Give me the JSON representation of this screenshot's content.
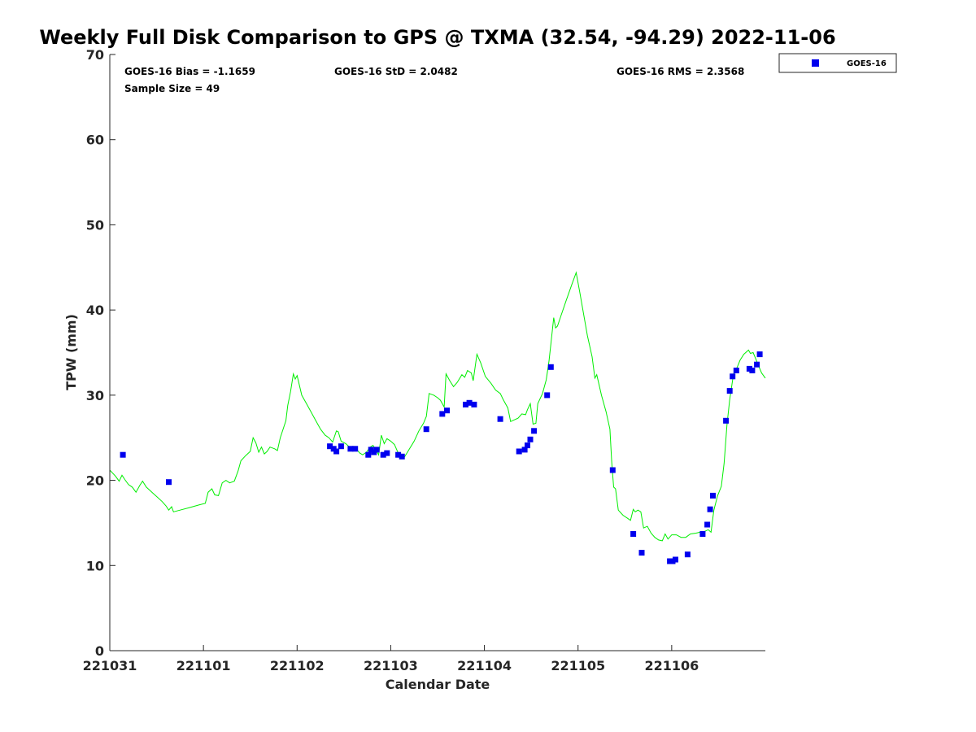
{
  "chart_data": {
    "type": "scatter",
    "title": "Weekly Full Disk Comparison to GPS @ TXMA (32.54, -94.29) 2022-11-06",
    "xlabel": "Calendar Date",
    "ylabel": "TPW (mm)",
    "xlim": [
      0,
      7
    ],
    "ylim": [
      0,
      70
    ],
    "x_ticks": [
      {
        "value": 0,
        "label": "221031"
      },
      {
        "value": 1,
        "label": "221101"
      },
      {
        "value": 2,
        "label": "221102"
      },
      {
        "value": 3,
        "label": "221103"
      },
      {
        "value": 4,
        "label": "221104"
      },
      {
        "value": 5,
        "label": "221105"
      },
      {
        "value": 6,
        "label": "221106"
      }
    ],
    "y_ticks": [
      0,
      10,
      20,
      30,
      40,
      50,
      60,
      70
    ],
    "grid": false,
    "legend": {
      "position": "top-right",
      "entries": [
        {
          "name": "GOES-16",
          "color": "#0000ee",
          "marker": "square"
        }
      ]
    },
    "stats": {
      "bias": "GOES-16 Bias = -1.1659",
      "std": "GOES-16 StD = 2.0482",
      "rms": "GOES-16 RMS = 2.3568",
      "sample": "Sample Size = 49"
    },
    "series": [
      {
        "name": "GOES-16",
        "kind": "scatter",
        "color": "#0000ee",
        "points": [
          [
            0.14,
            23.0
          ],
          [
            0.63,
            19.8
          ],
          [
            2.35,
            24.0
          ],
          [
            2.39,
            23.7
          ],
          [
            2.42,
            23.4
          ],
          [
            2.47,
            24.0
          ],
          [
            2.57,
            23.7
          ],
          [
            2.62,
            23.7
          ],
          [
            2.76,
            23.0
          ],
          [
            2.79,
            23.6
          ],
          [
            2.82,
            23.3
          ],
          [
            2.85,
            23.6
          ],
          [
            2.92,
            23.0
          ],
          [
            2.96,
            23.2
          ],
          [
            3.08,
            23.0
          ],
          [
            3.12,
            22.8
          ],
          [
            3.38,
            26.0
          ],
          [
            3.55,
            27.8
          ],
          [
            3.6,
            28.2
          ],
          [
            3.8,
            28.9
          ],
          [
            3.84,
            29.1
          ],
          [
            3.89,
            28.9
          ],
          [
            4.17,
            27.2
          ],
          [
            4.37,
            23.4
          ],
          [
            4.43,
            23.6
          ],
          [
            4.46,
            24.1
          ],
          [
            4.49,
            24.8
          ],
          [
            4.53,
            25.8
          ],
          [
            4.67,
            30.0
          ],
          [
            4.71,
            33.3
          ],
          [
            5.37,
            21.2
          ],
          [
            5.59,
            13.7
          ],
          [
            5.68,
            11.5
          ],
          [
            5.98,
            10.5
          ],
          [
            6.01,
            10.5
          ],
          [
            6.04,
            10.7
          ],
          [
            6.17,
            11.3
          ],
          [
            6.33,
            13.7
          ],
          [
            6.38,
            14.8
          ],
          [
            6.41,
            16.6
          ],
          [
            6.44,
            18.2
          ],
          [
            6.58,
            27.0
          ],
          [
            6.62,
            30.5
          ],
          [
            6.65,
            32.2
          ],
          [
            6.69,
            32.9
          ],
          [
            6.83,
            33.1
          ],
          [
            6.86,
            32.9
          ],
          [
            6.91,
            33.6
          ],
          [
            6.94,
            34.8
          ]
        ]
      },
      {
        "name": "",
        "kind": "line",
        "color": "#00ee00",
        "points": [
          [
            0.0,
            21.2
          ],
          [
            0.06,
            20.5
          ],
          [
            0.1,
            19.9
          ],
          [
            0.13,
            20.6
          ],
          [
            0.16,
            20.1
          ],
          [
            0.2,
            19.5
          ],
          [
            0.24,
            19.2
          ],
          [
            0.28,
            18.6
          ],
          [
            0.32,
            19.4
          ],
          [
            0.35,
            19.9
          ],
          [
            0.39,
            19.2
          ],
          [
            0.45,
            18.6
          ],
          [
            0.5,
            18.1
          ],
          [
            0.56,
            17.5
          ],
          [
            0.6,
            17.0
          ],
          [
            0.63,
            16.5
          ],
          [
            0.66,
            16.9
          ],
          [
            0.68,
            16.3
          ],
          [
            0.75,
            16.5
          ],
          [
            0.85,
            16.8
          ],
          [
            0.95,
            17.1
          ],
          [
            1.02,
            17.3
          ],
          [
            1.05,
            18.6
          ],
          [
            1.09,
            19.0
          ],
          [
            1.12,
            18.3
          ],
          [
            1.16,
            18.2
          ],
          [
            1.2,
            19.7
          ],
          [
            1.24,
            20.0
          ],
          [
            1.28,
            19.7
          ],
          [
            1.33,
            19.9
          ],
          [
            1.37,
            21.1
          ],
          [
            1.4,
            22.3
          ],
          [
            1.45,
            22.9
          ],
          [
            1.5,
            23.4
          ],
          [
            1.53,
            25.0
          ],
          [
            1.56,
            24.4
          ],
          [
            1.59,
            23.3
          ],
          [
            1.62,
            23.9
          ],
          [
            1.65,
            23.1
          ],
          [
            1.68,
            23.4
          ],
          [
            1.71,
            23.9
          ],
          [
            1.76,
            23.7
          ],
          [
            1.79,
            23.5
          ],
          [
            1.82,
            25.0
          ],
          [
            1.88,
            27.0
          ],
          [
            1.9,
            28.8
          ],
          [
            1.93,
            30.4
          ],
          [
            1.96,
            32.5
          ],
          [
            1.98,
            31.9
          ],
          [
            2.0,
            32.3
          ],
          [
            2.05,
            30.0
          ],
          [
            2.1,
            29.0
          ],
          [
            2.15,
            28.0
          ],
          [
            2.2,
            27.0
          ],
          [
            2.25,
            26.0
          ],
          [
            2.3,
            25.3
          ],
          [
            2.34,
            25.0
          ],
          [
            2.38,
            24.5
          ],
          [
            2.42,
            25.8
          ],
          [
            2.44,
            25.7
          ],
          [
            2.47,
            24.6
          ],
          [
            2.52,
            24.3
          ],
          [
            2.56,
            23.9
          ],
          [
            2.6,
            23.6
          ],
          [
            2.63,
            23.7
          ],
          [
            2.67,
            23.2
          ],
          [
            2.7,
            23.0
          ],
          [
            2.74,
            23.3
          ],
          [
            2.78,
            23.9
          ],
          [
            2.81,
            24.1
          ],
          [
            2.84,
            23.6
          ],
          [
            2.87,
            23.0
          ],
          [
            2.9,
            25.3
          ],
          [
            2.93,
            24.3
          ],
          [
            2.96,
            24.9
          ],
          [
            3.0,
            24.6
          ],
          [
            3.04,
            24.2
          ],
          [
            3.08,
            23.2
          ],
          [
            3.12,
            22.8
          ],
          [
            3.15,
            22.8
          ],
          [
            3.2,
            23.7
          ],
          [
            3.25,
            24.6
          ],
          [
            3.3,
            25.8
          ],
          [
            3.35,
            26.7
          ],
          [
            3.38,
            27.5
          ],
          [
            3.41,
            30.2
          ],
          [
            3.46,
            30.0
          ],
          [
            3.5,
            29.7
          ],
          [
            3.53,
            29.4
          ],
          [
            3.57,
            28.6
          ],
          [
            3.59,
            32.5
          ],
          [
            3.63,
            31.7
          ],
          [
            3.67,
            31.0
          ],
          [
            3.71,
            31.5
          ],
          [
            3.76,
            32.4
          ],
          [
            3.79,
            32.1
          ],
          [
            3.82,
            32.9
          ],
          [
            3.86,
            32.6
          ],
          [
            3.88,
            31.7
          ],
          [
            3.92,
            34.8
          ],
          [
            3.96,
            33.8
          ],
          [
            4.01,
            32.2
          ],
          [
            4.07,
            31.4
          ],
          [
            4.12,
            30.6
          ],
          [
            4.17,
            30.2
          ],
          [
            4.2,
            29.5
          ],
          [
            4.25,
            28.5
          ],
          [
            4.28,
            26.9
          ],
          [
            4.32,
            27.1
          ],
          [
            4.36,
            27.3
          ],
          [
            4.4,
            27.8
          ],
          [
            4.44,
            27.7
          ],
          [
            4.46,
            28.3
          ],
          [
            4.49,
            29.0
          ],
          [
            4.52,
            26.6
          ],
          [
            4.55,
            26.7
          ],
          [
            4.57,
            29.0
          ],
          [
            4.62,
            30.2
          ],
          [
            4.66,
            31.8
          ],
          [
            4.69,
            34.0
          ],
          [
            4.71,
            36.0
          ],
          [
            4.74,
            39.1
          ],
          [
            4.76,
            37.9
          ],
          [
            4.78,
            38.1
          ],
          [
            4.82,
            39.4
          ],
          [
            4.87,
            41.0
          ],
          [
            4.93,
            42.9
          ],
          [
            4.98,
            44.4
          ],
          [
            5.02,
            42.0
          ],
          [
            5.06,
            39.5
          ],
          [
            5.1,
            37.0
          ],
          [
            5.15,
            34.5
          ],
          [
            5.18,
            32.0
          ],
          [
            5.2,
            32.4
          ],
          [
            5.25,
            30.0
          ],
          [
            5.3,
            28.0
          ],
          [
            5.34,
            26.0
          ],
          [
            5.36,
            22.0
          ],
          [
            5.38,
            19.2
          ],
          [
            5.4,
            19.0
          ],
          [
            5.43,
            16.5
          ],
          [
            5.48,
            15.9
          ],
          [
            5.52,
            15.6
          ],
          [
            5.56,
            15.3
          ],
          [
            5.59,
            16.6
          ],
          [
            5.61,
            16.3
          ],
          [
            5.64,
            16.5
          ],
          [
            5.67,
            16.3
          ],
          [
            5.7,
            14.4
          ],
          [
            5.74,
            14.6
          ],
          [
            5.78,
            13.8
          ],
          [
            5.82,
            13.3
          ],
          [
            5.86,
            13.0
          ],
          [
            5.9,
            12.9
          ],
          [
            5.93,
            13.7
          ],
          [
            5.96,
            13.1
          ],
          [
            6.0,
            13.6
          ],
          [
            6.05,
            13.6
          ],
          [
            6.1,
            13.3
          ],
          [
            6.15,
            13.3
          ],
          [
            6.2,
            13.7
          ],
          [
            6.26,
            13.8
          ],
          [
            6.3,
            13.9
          ],
          [
            6.35,
            14.0
          ],
          [
            6.39,
            14.2
          ],
          [
            6.42,
            13.9
          ],
          [
            6.45,
            16.5
          ],
          [
            6.49,
            18.2
          ],
          [
            6.53,
            19.3
          ],
          [
            6.56,
            22.0
          ],
          [
            6.59,
            26.5
          ],
          [
            6.62,
            29.5
          ],
          [
            6.66,
            32.5
          ],
          [
            6.7,
            33.3
          ],
          [
            6.73,
            34.1
          ],
          [
            6.77,
            34.8
          ],
          [
            6.82,
            35.3
          ],
          [
            6.84,
            34.9
          ],
          [
            6.87,
            35.0
          ],
          [
            6.9,
            34.2
          ],
          [
            6.93,
            33.4
          ],
          [
            6.96,
            32.6
          ],
          [
            7.0,
            32.0
          ]
        ]
      }
    ]
  }
}
